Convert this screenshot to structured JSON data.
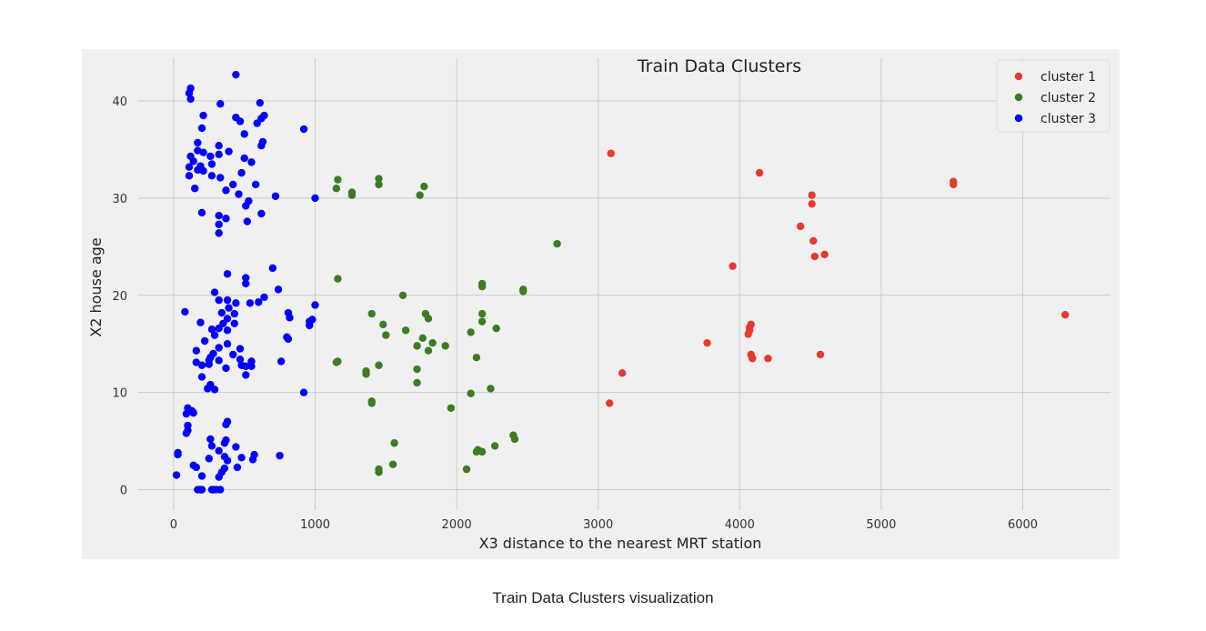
{
  "caption": "Train Data Clusters visualization",
  "chart_data": {
    "type": "scatter",
    "title": "Train Data Clusters",
    "xlabel": "X3 distance to the nearest MRT station",
    "ylabel": "X2 house age",
    "xlim": [
      -250,
      6620
    ],
    "ylim": [
      -2.1,
      44.4
    ],
    "xticks": [
      0,
      1000,
      2000,
      3000,
      4000,
      5000,
      6000
    ],
    "yticks": [
      0,
      10,
      20,
      30,
      40
    ],
    "grid": true,
    "legend_position": "top-right",
    "series": [
      {
        "name": "cluster 1",
        "color": "#e8392e",
        "points": [
          [
            3090,
            34.6
          ],
          [
            4140,
            32.6
          ],
          [
            5510,
            31.7
          ],
          [
            5510,
            31.4
          ],
          [
            4510,
            30.3
          ],
          [
            4510,
            29.4
          ],
          [
            4430,
            27.1
          ],
          [
            4520,
            25.6
          ],
          [
            4600,
            24.2
          ],
          [
            4530,
            24.0
          ],
          [
            3950,
            23.0
          ],
          [
            6300,
            18.0
          ],
          [
            4080,
            17.0
          ],
          [
            4070,
            16.7
          ],
          [
            4070,
            16.4
          ],
          [
            4060,
            16.0
          ],
          [
            3770,
            15.1
          ],
          [
            4570,
            13.9
          ],
          [
            4080,
            13.9
          ],
          [
            4090,
            13.5
          ],
          [
            4200,
            13.5
          ],
          [
            3170,
            12.0
          ],
          [
            3080,
            8.9
          ]
        ]
      },
      {
        "name": "cluster 2",
        "color": "#3c7d22",
        "points": [
          [
            1160,
            31.9
          ],
          [
            1450,
            32.0
          ],
          [
            1150,
            31.0
          ],
          [
            1450,
            31.4
          ],
          [
            1770,
            31.2
          ],
          [
            1260,
            30.6
          ],
          [
            1260,
            30.3
          ],
          [
            1740,
            30.3
          ],
          [
            2710,
            25.3
          ],
          [
            1160,
            21.7
          ],
          [
            2180,
            21.2
          ],
          [
            2180,
            20.9
          ],
          [
            2470,
            20.6
          ],
          [
            2470,
            20.4
          ],
          [
            1620,
            20.0
          ],
          [
            1400,
            18.1
          ],
          [
            1780,
            18.1
          ],
          [
            2180,
            18.1
          ],
          [
            1800,
            17.6
          ],
          [
            2180,
            17.3
          ],
          [
            1480,
            17.0
          ],
          [
            2280,
            16.6
          ],
          [
            1640,
            16.4
          ],
          [
            2100,
            16.2
          ],
          [
            1500,
            15.9
          ],
          [
            1760,
            15.6
          ],
          [
            1830,
            15.1
          ],
          [
            1720,
            14.8
          ],
          [
            1920,
            14.8
          ],
          [
            1800,
            14.3
          ],
          [
            2140,
            13.6
          ],
          [
            1160,
            13.2
          ],
          [
            1150,
            13.1
          ],
          [
            1450,
            12.8
          ],
          [
            1360,
            12.2
          ],
          [
            1360,
            11.9
          ],
          [
            1720,
            12.4
          ],
          [
            1720,
            11.0
          ],
          [
            2240,
            10.4
          ],
          [
            2100,
            9.9
          ],
          [
            1400,
            9.1
          ],
          [
            1400,
            8.9
          ],
          [
            1960,
            8.4
          ],
          [
            2400,
            5.6
          ],
          [
            2410,
            5.2
          ],
          [
            1560,
            4.8
          ],
          [
            2270,
            4.5
          ],
          [
            2150,
            4.1
          ],
          [
            2180,
            3.9
          ],
          [
            2140,
            3.9
          ],
          [
            1550,
            2.6
          ],
          [
            1450,
            2.1
          ],
          [
            1450,
            1.8
          ],
          [
            2070,
            2.1
          ]
        ]
      },
      {
        "name": "cluster 3",
        "color": "#0000ff",
        "points": [
          [
            440,
            42.7
          ],
          [
            120,
            41.3
          ],
          [
            110,
            40.8
          ],
          [
            120,
            40.2
          ],
          [
            330,
            39.7
          ],
          [
            610,
            39.8
          ],
          [
            210,
            38.5
          ],
          [
            440,
            38.3
          ],
          [
            470,
            37.9
          ],
          [
            640,
            38.5
          ],
          [
            620,
            38.2
          ],
          [
            590,
            37.7
          ],
          [
            920,
            37.1
          ],
          [
            200,
            37.2
          ],
          [
            500,
            36.6
          ],
          [
            630,
            35.8
          ],
          [
            620,
            35.4
          ],
          [
            170,
            35.7
          ],
          [
            320,
            35.4
          ],
          [
            390,
            34.8
          ],
          [
            170,
            34.9
          ],
          [
            210,
            34.7
          ],
          [
            320,
            34.5
          ],
          [
            260,
            34.3
          ],
          [
            500,
            34.1
          ],
          [
            120,
            34.3
          ],
          [
            140,
            33.8
          ],
          [
            550,
            33.7
          ],
          [
            110,
            33.2
          ],
          [
            190,
            33.3
          ],
          [
            170,
            32.9
          ],
          [
            210,
            32.8
          ],
          [
            270,
            33.5
          ],
          [
            480,
            32.6
          ],
          [
            110,
            32.3
          ],
          [
            270,
            32.3
          ],
          [
            330,
            32.1
          ],
          [
            420,
            31.4
          ],
          [
            580,
            31.4
          ],
          [
            150,
            31.0
          ],
          [
            370,
            30.8
          ],
          [
            460,
            30.4
          ],
          [
            720,
            30.2
          ],
          [
            1000,
            30.0
          ],
          [
            530,
            29.7
          ],
          [
            510,
            29.2
          ],
          [
            200,
            28.5
          ],
          [
            620,
            28.4
          ],
          [
            320,
            28.2
          ],
          [
            370,
            27.9
          ],
          [
            520,
            27.6
          ],
          [
            320,
            27.3
          ],
          [
            320,
            26.4
          ],
          [
            700,
            22.8
          ],
          [
            380,
            22.2
          ],
          [
            510,
            21.8
          ],
          [
            510,
            21.2
          ],
          [
            740,
            20.6
          ],
          [
            290,
            20.3
          ],
          [
            380,
            19.5
          ],
          [
            640,
            19.8
          ],
          [
            600,
            19.3
          ],
          [
            540,
            19.2
          ],
          [
            440,
            19.2
          ],
          [
            320,
            19.5
          ],
          [
            1000,
            19.0
          ],
          [
            390,
            18.7
          ],
          [
            80,
            18.3
          ],
          [
            340,
            18.2
          ],
          [
            430,
            18.1
          ],
          [
            810,
            18.2
          ],
          [
            820,
            17.7
          ],
          [
            380,
            17.6
          ],
          [
            190,
            17.2
          ],
          [
            980,
            17.5
          ],
          [
            960,
            17.3
          ],
          [
            960,
            16.9
          ],
          [
            350,
            17.1
          ],
          [
            430,
            17.1
          ],
          [
            380,
            16.4
          ],
          [
            320,
            16.6
          ],
          [
            270,
            16.5
          ],
          [
            290,
            15.9
          ],
          [
            800,
            15.7
          ],
          [
            810,
            15.5
          ],
          [
            220,
            15.3
          ],
          [
            380,
            15.0
          ],
          [
            320,
            14.6
          ],
          [
            470,
            14.5
          ],
          [
            160,
            14.3
          ],
          [
            280,
            14.0
          ],
          [
            420,
            13.9
          ],
          [
            260,
            13.6
          ],
          [
            250,
            13.3
          ],
          [
            320,
            13.3
          ],
          [
            470,
            13.4
          ],
          [
            550,
            13.2
          ],
          [
            760,
            13.2
          ],
          [
            160,
            13.1
          ],
          [
            200,
            12.8
          ],
          [
            250,
            12.9
          ],
          [
            480,
            12.8
          ],
          [
            510,
            12.7
          ],
          [
            550,
            12.7
          ],
          [
            370,
            12.5
          ],
          [
            200,
            11.6
          ],
          [
            510,
            11.8
          ],
          [
            260,
            10.8
          ],
          [
            240,
            10.4
          ],
          [
            290,
            10.3
          ],
          [
            920,
            10.0
          ],
          [
            100,
            8.4
          ],
          [
            130,
            8.1
          ],
          [
            140,
            7.9
          ],
          [
            90,
            7.8
          ],
          [
            380,
            7.0
          ],
          [
            370,
            6.7
          ],
          [
            100,
            6.6
          ],
          [
            100,
            6.1
          ],
          [
            90,
            5.8
          ],
          [
            260,
            5.2
          ],
          [
            370,
            5.1
          ],
          [
            360,
            4.8
          ],
          [
            270,
            4.5
          ],
          [
            440,
            4.4
          ],
          [
            320,
            4.0
          ],
          [
            570,
            3.6
          ],
          [
            750,
            3.5
          ],
          [
            30,
            3.8
          ],
          [
            30,
            3.6
          ],
          [
            360,
            3.4
          ],
          [
            480,
            3.3
          ],
          [
            250,
            3.2
          ],
          [
            560,
            3.1
          ],
          [
            380,
            3.0
          ],
          [
            140,
            2.5
          ],
          [
            160,
            2.3
          ],
          [
            450,
            2.3
          ],
          [
            360,
            2.2
          ],
          [
            340,
            1.8
          ],
          [
            20,
            1.5
          ],
          [
            200,
            1.4
          ],
          [
            320,
            1.3
          ],
          [
            170,
            0.0
          ],
          [
            190,
            0.0
          ],
          [
            200,
            0.0
          ],
          [
            270,
            0.0
          ],
          [
            280,
            0.0
          ],
          [
            300,
            0.0
          ],
          [
            330,
            0.0
          ]
        ]
      }
    ]
  }
}
